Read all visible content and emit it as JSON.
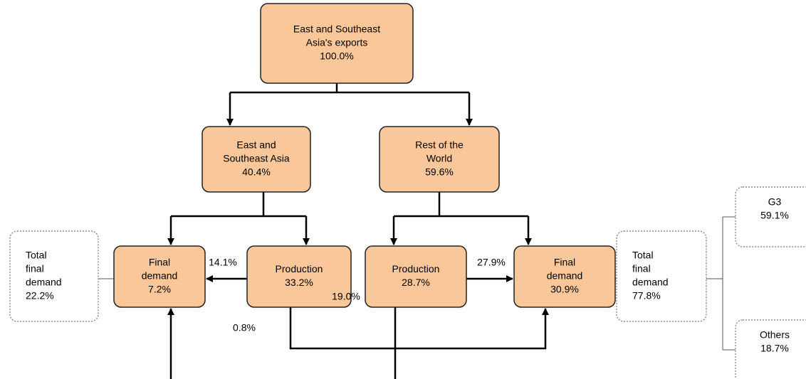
{
  "nodes": [
    {
      "lines": [
        "East and Southeast",
        "Asia's exports",
        "100.0%"
      ]
    },
    {
      "lines": [
        "East and",
        "Southeast Asia",
        "40.4%"
      ]
    },
    {
      "lines": [
        "Rest of the",
        "World",
        "59.6%"
      ]
    },
    {
      "lines": [
        "Final",
        "demand",
        "7.2%"
      ]
    },
    {
      "lines": [
        "Production",
        "33.2%"
      ]
    },
    {
      "lines": [
        "Production",
        "28.7%"
      ]
    },
    {
      "lines": [
        "Final",
        "demand",
        "30.9%"
      ]
    },
    {
      "lines": [
        "Total",
        "final",
        "demand",
        "22.2%"
      ]
    },
    {
      "lines": [
        "Total",
        "final",
        "demand",
        "77.8%"
      ]
    },
    {
      "lines": [
        "G3",
        "59.1%"
      ]
    },
    {
      "lines": [
        "Others",
        "18.7%"
      ]
    }
  ],
  "flows": [
    "14.1%",
    "27.9%",
    "19.0%",
    "0.8%"
  ]
}
